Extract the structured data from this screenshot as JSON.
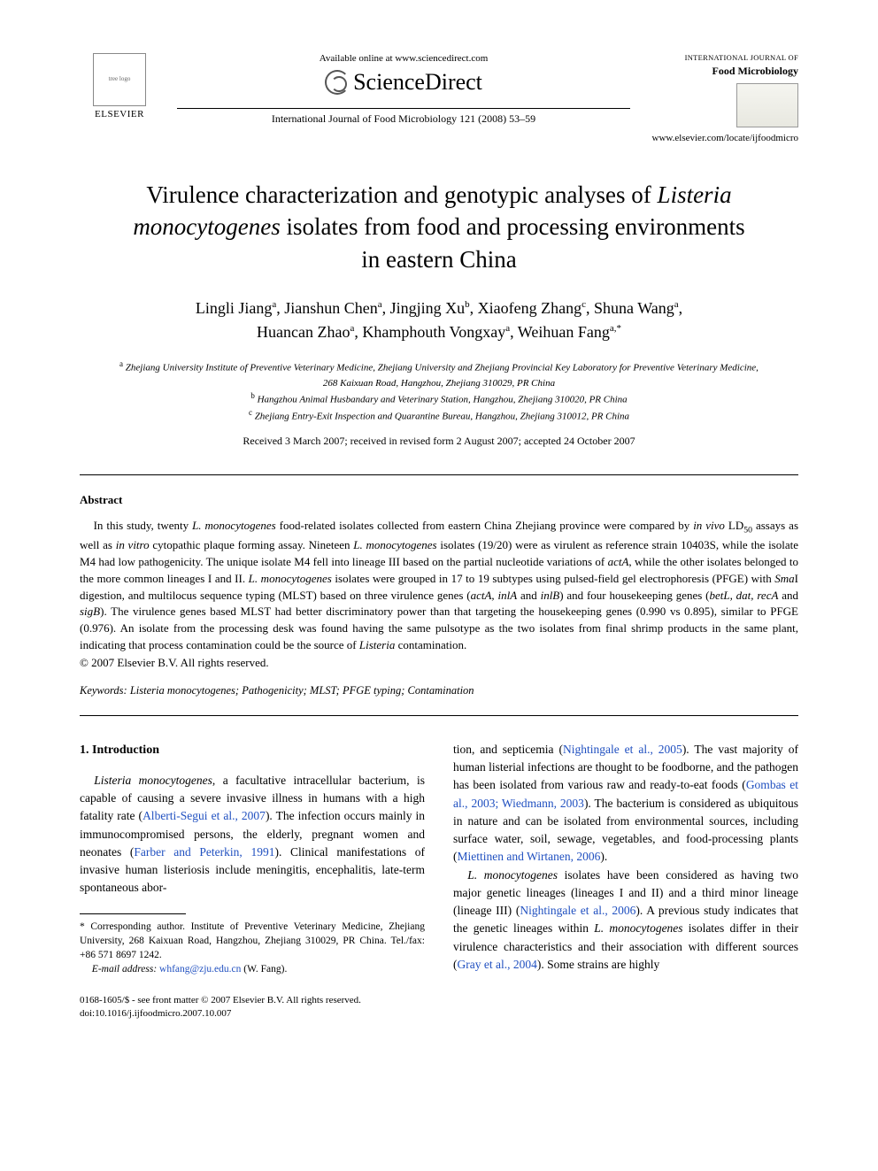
{
  "header": {
    "publisher_name": "ELSEVIER",
    "available_online": "Available online at www.sciencedirect.com",
    "platform_name": "ScienceDirect",
    "citation": "International Journal of Food Microbiology 121 (2008) 53–59",
    "journal_name_upper": "INTERNATIONAL JOURNAL OF",
    "journal_name_bold": "Food Microbiology",
    "journal_url": "www.elsevier.com/locate/ijfoodmicro"
  },
  "title": {
    "pre": "Virulence characterization and genotypic analyses of ",
    "italic": "Listeria monocytogenes",
    "post": " isolates from food and processing environments in eastern China"
  },
  "authors": {
    "a1": "Lingli Jiang",
    "s1": "a",
    "a2": "Jianshun Chen",
    "s2": "a",
    "a3": "Jingjing Xu",
    "s3": "b",
    "a4": "Xiaofeng Zhang",
    "s4": "c",
    "a5": "Shuna Wang",
    "s5": "a",
    "a6": "Huancan Zhao",
    "s6": "a",
    "a7": "Khamphouth Vongxay",
    "s7": "a",
    "a8": "Weihuan Fang",
    "s8": "a,*"
  },
  "affiliations": {
    "a": "Zhejiang University Institute of Preventive Veterinary Medicine, Zhejiang University and Zhejiang Provincial Key Laboratory for Preventive Veterinary Medicine, 268 Kaixuan Road, Hangzhou, Zhejiang 310029, PR China",
    "b": "Hangzhou Animal Husbandary and Veterinary Station, Hangzhou, Zhejiang 310020, PR China",
    "c": "Zhejiang Entry-Exit Inspection and Quarantine Bureau, Hangzhou, Zhejiang 310012, PR China"
  },
  "dates": "Received 3 March 2007; received in revised form 2 August 2007; accepted 24 October 2007",
  "abstract": {
    "heading": "Abstract",
    "body_1": "In this study, twenty ",
    "body_2_it": "L. monocytogenes",
    "body_3": " food-related isolates collected from eastern China Zhejiang province were compared by ",
    "body_4_it": "in vivo",
    "body_5": " LD",
    "body_5_sub": "50",
    "body_6": " assays as well as ",
    "body_7_it": "in vitro",
    "body_8": " cytopathic plaque forming assay. Nineteen ",
    "body_9_it": "L. monocytogenes",
    "body_10": " isolates (19/20) were as virulent as reference strain 10403S, while the isolate M4 had low pathogenicity. The unique isolate M4 fell into lineage III based on the partial nucleotide variations of ",
    "body_11_it": "actA",
    "body_12": ", while the other isolates belonged to the more common lineages I and II. ",
    "body_13_it": "L. monocytogenes",
    "body_14": " isolates were grouped in 17 to 19 subtypes using pulsed-field gel electrophoresis (PFGE) with ",
    "body_15_it": "Sma",
    "body_16": "I digestion, and multilocus sequence typing (MLST) based on three virulence genes (",
    "body_17_it": "actA, inlA",
    "body_18": " and ",
    "body_19_it": "inlB",
    "body_20": ") and four housekeeping genes (",
    "body_21_it": "betL, dat, recA",
    "body_22": " and ",
    "body_23_it": "sigB",
    "body_24": "). The virulence genes based MLST had better discriminatory power than that targeting the housekeeping genes (0.990 vs 0.895), similar to PFGE (0.976). An isolate from the processing desk was found having the same pulsotype as the two isolates from final shrimp products in the same plant, indicating that process contamination could be the source of ",
    "body_25_it": "Listeria",
    "body_26": " contamination.",
    "copyright": "© 2007 Elsevier B.V. All rights reserved."
  },
  "keywords": {
    "label": "Keywords:",
    "text": " Listeria monocytogenes; Pathogenicity; MLST; PFGE typing; Contamination"
  },
  "intro": {
    "heading": "1. Introduction",
    "p1_1_it": "Listeria monocytogenes",
    "p1_2": ", a facultative intracellular bacterium, is capable of causing a severe invasive illness in humans with a high fatality rate (",
    "p1_3_link": "Alberti-Segui et al., 2007",
    "p1_4": "). The infection occurs mainly in immunocompromised persons, the elderly, pregnant women and neonates (",
    "p1_5_link": "Farber and Peterkin, 1991",
    "p1_6": "). Clinical manifestations of invasive human listeriosis include meningitis, encephalitis, late-term spontaneous abor",
    "p1cont_1": "tion, and septicemia (",
    "p1cont_2_link": "Nightingale et al., 2005",
    "p1cont_3": "). The vast majority of human listerial infections are thought to be foodborne, and the pathogen has been isolated from various raw and ready-to-eat foods (",
    "p1cont_4_link": "Gombas et al., 2003; Wiedmann, 2003",
    "p1cont_5": "). The bacterium is considered as ubiquitous in nature and can be isolated from environmental sources, including surface water, soil, sewage, vegetables, and food-processing plants (",
    "p1cont_6_link": "Miettinen and Wirtanen, 2006",
    "p1cont_7": ").",
    "p2_1_it": "L. monocytogenes",
    "p2_2": " isolates have been considered as having two major genetic lineages (lineages I and II) and a third minor lineage (lineage III) (",
    "p2_3_link": "Nightingale et al., 2006",
    "p2_4": "). A previous study indicates that the genetic lineages within ",
    "p2_5_it": "L. monocytogenes",
    "p2_6": " isolates differ in their virulence characteristics and their association with different sources (",
    "p2_7_link": "Gray et al., 2004",
    "p2_8": "). Some strains are highly"
  },
  "footnote": {
    "corr_1": "* Corresponding author. Institute of Preventive Veterinary Medicine, Zhejiang University, 268 Kaixuan Road, Hangzhou, Zhejiang 310029, PR China. Tel./fax: +86 571 8697 1242.",
    "email_label": "E-mail address:",
    "email_value": " whfang@zju.edu.cn",
    "email_suffix": " (W. Fang)."
  },
  "footer": {
    "line1": "0168-1605/$ - see front matter © 2007 Elsevier B.V. All rights reserved.",
    "line2": "doi:10.1016/j.ijfoodmicro.2007.10.007"
  }
}
